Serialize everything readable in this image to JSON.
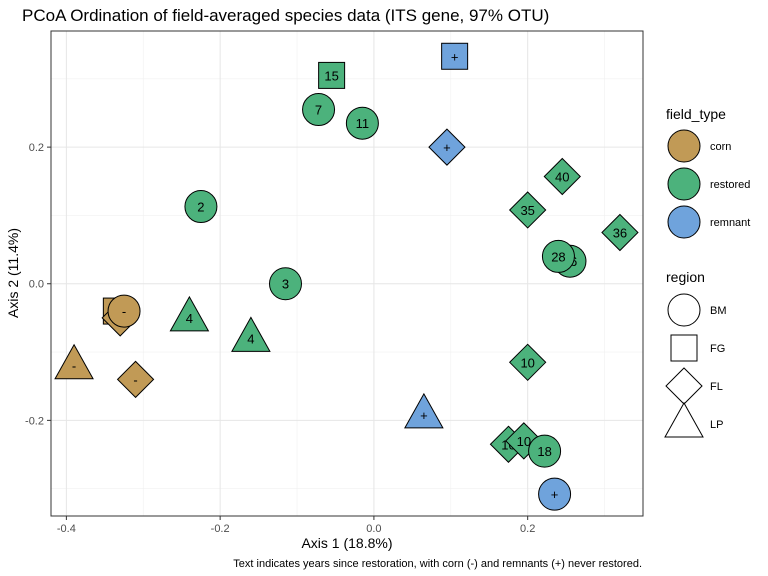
{
  "chart_data": {
    "type": "scatter",
    "title": "PCoA Ordination of field-averaged species data (ITS gene, 97% OTU)",
    "xlabel": "Axis 1 (18.8%)",
    "ylabel": "Axis 2 (11.4%)",
    "caption": "Text indicates years since restoration, with corn (-) and remnants (+) never restored.",
    "xlim": [
      -0.42,
      0.35
    ],
    "ylim": [
      -0.34,
      0.37
    ],
    "x_ticks": [
      -0.4,
      -0.2,
      0.0,
      0.2
    ],
    "x_tick_labels": [
      "-0.4",
      "-0.2",
      "0.0",
      "0.2"
    ],
    "y_ticks": [
      -0.2,
      0.0,
      0.2
    ],
    "y_tick_labels": [
      "-0.2",
      "0.0",
      "0.2"
    ],
    "grid": true,
    "colors": {
      "corn": "#C19A56",
      "restored": "#4CB27C",
      "remnant": "#6FA3DC"
    },
    "legend": [
      {
        "title": "field_type",
        "kind": "fill",
        "items": [
          {
            "label": "corn",
            "key": "corn"
          },
          {
            "label": "restored",
            "key": "restored"
          },
          {
            "label": "remnant",
            "key": "remnant"
          }
        ]
      },
      {
        "title": "region",
        "kind": "shape",
        "items": [
          {
            "label": "BM",
            "shape": "circle"
          },
          {
            "label": "FG",
            "shape": "square"
          },
          {
            "label": "FL",
            "shape": "diamond"
          },
          {
            "label": "LP",
            "shape": "triangle"
          }
        ]
      }
    ],
    "legend_position": "right",
    "points": [
      {
        "x": -0.335,
        "y": -0.04,
        "field_type": "corn",
        "region": "FG",
        "label": "-"
      },
      {
        "x": -0.33,
        "y": -0.05,
        "field_type": "corn",
        "region": "FL",
        "label": "-"
      },
      {
        "x": -0.325,
        "y": -0.04,
        "field_type": "corn",
        "region": "BM",
        "label": "-"
      },
      {
        "x": -0.39,
        "y": -0.12,
        "field_type": "corn",
        "region": "LP",
        "label": "-"
      },
      {
        "x": -0.31,
        "y": -0.14,
        "field_type": "corn",
        "region": "FL",
        "label": "-"
      },
      {
        "x": -0.24,
        "y": -0.05,
        "field_type": "restored",
        "region": "LP",
        "label": "4"
      },
      {
        "x": -0.16,
        "y": -0.08,
        "field_type": "restored",
        "region": "LP",
        "label": "4"
      },
      {
        "x": -0.225,
        "y": 0.113,
        "field_type": "restored",
        "region": "BM",
        "label": "2"
      },
      {
        "x": -0.115,
        "y": 0.0,
        "field_type": "restored",
        "region": "BM",
        "label": "3"
      },
      {
        "x": -0.055,
        "y": 0.305,
        "field_type": "restored",
        "region": "FG",
        "label": "15"
      },
      {
        "x": -0.072,
        "y": 0.255,
        "field_type": "restored",
        "region": "BM",
        "label": "7"
      },
      {
        "x": -0.015,
        "y": 0.235,
        "field_type": "restored",
        "region": "BM",
        "label": "11"
      },
      {
        "x": 0.105,
        "y": 0.333,
        "field_type": "remnant",
        "region": "FG",
        "label": "+"
      },
      {
        "x": 0.095,
        "y": 0.2,
        "field_type": "remnant",
        "region": "FL",
        "label": "+"
      },
      {
        "x": 0.245,
        "y": 0.157,
        "field_type": "restored",
        "region": "FL",
        "label": "40"
      },
      {
        "x": 0.2,
        "y": 0.108,
        "field_type": "restored",
        "region": "FL",
        "label": "35"
      },
      {
        "x": 0.32,
        "y": 0.075,
        "field_type": "restored",
        "region": "FL",
        "label": "36"
      },
      {
        "x": 0.255,
        "y": 0.033,
        "field_type": "restored",
        "region": "BM",
        "label": "16"
      },
      {
        "x": 0.24,
        "y": 0.04,
        "field_type": "restored",
        "region": "BM",
        "label": "28"
      },
      {
        "x": 0.2,
        "y": -0.115,
        "field_type": "restored",
        "region": "FL",
        "label": "10"
      },
      {
        "x": 0.065,
        "y": -0.192,
        "field_type": "remnant",
        "region": "LP",
        "label": "+"
      },
      {
        "x": 0.175,
        "y": -0.235,
        "field_type": "restored",
        "region": "FL",
        "label": "10"
      },
      {
        "x": 0.195,
        "y": -0.23,
        "field_type": "restored",
        "region": "FL",
        "label": "10"
      },
      {
        "x": 0.222,
        "y": -0.245,
        "field_type": "restored",
        "region": "BM",
        "label": "18"
      },
      {
        "x": 0.235,
        "y": -0.308,
        "field_type": "remnant",
        "region": "BM",
        "label": "+"
      }
    ]
  }
}
